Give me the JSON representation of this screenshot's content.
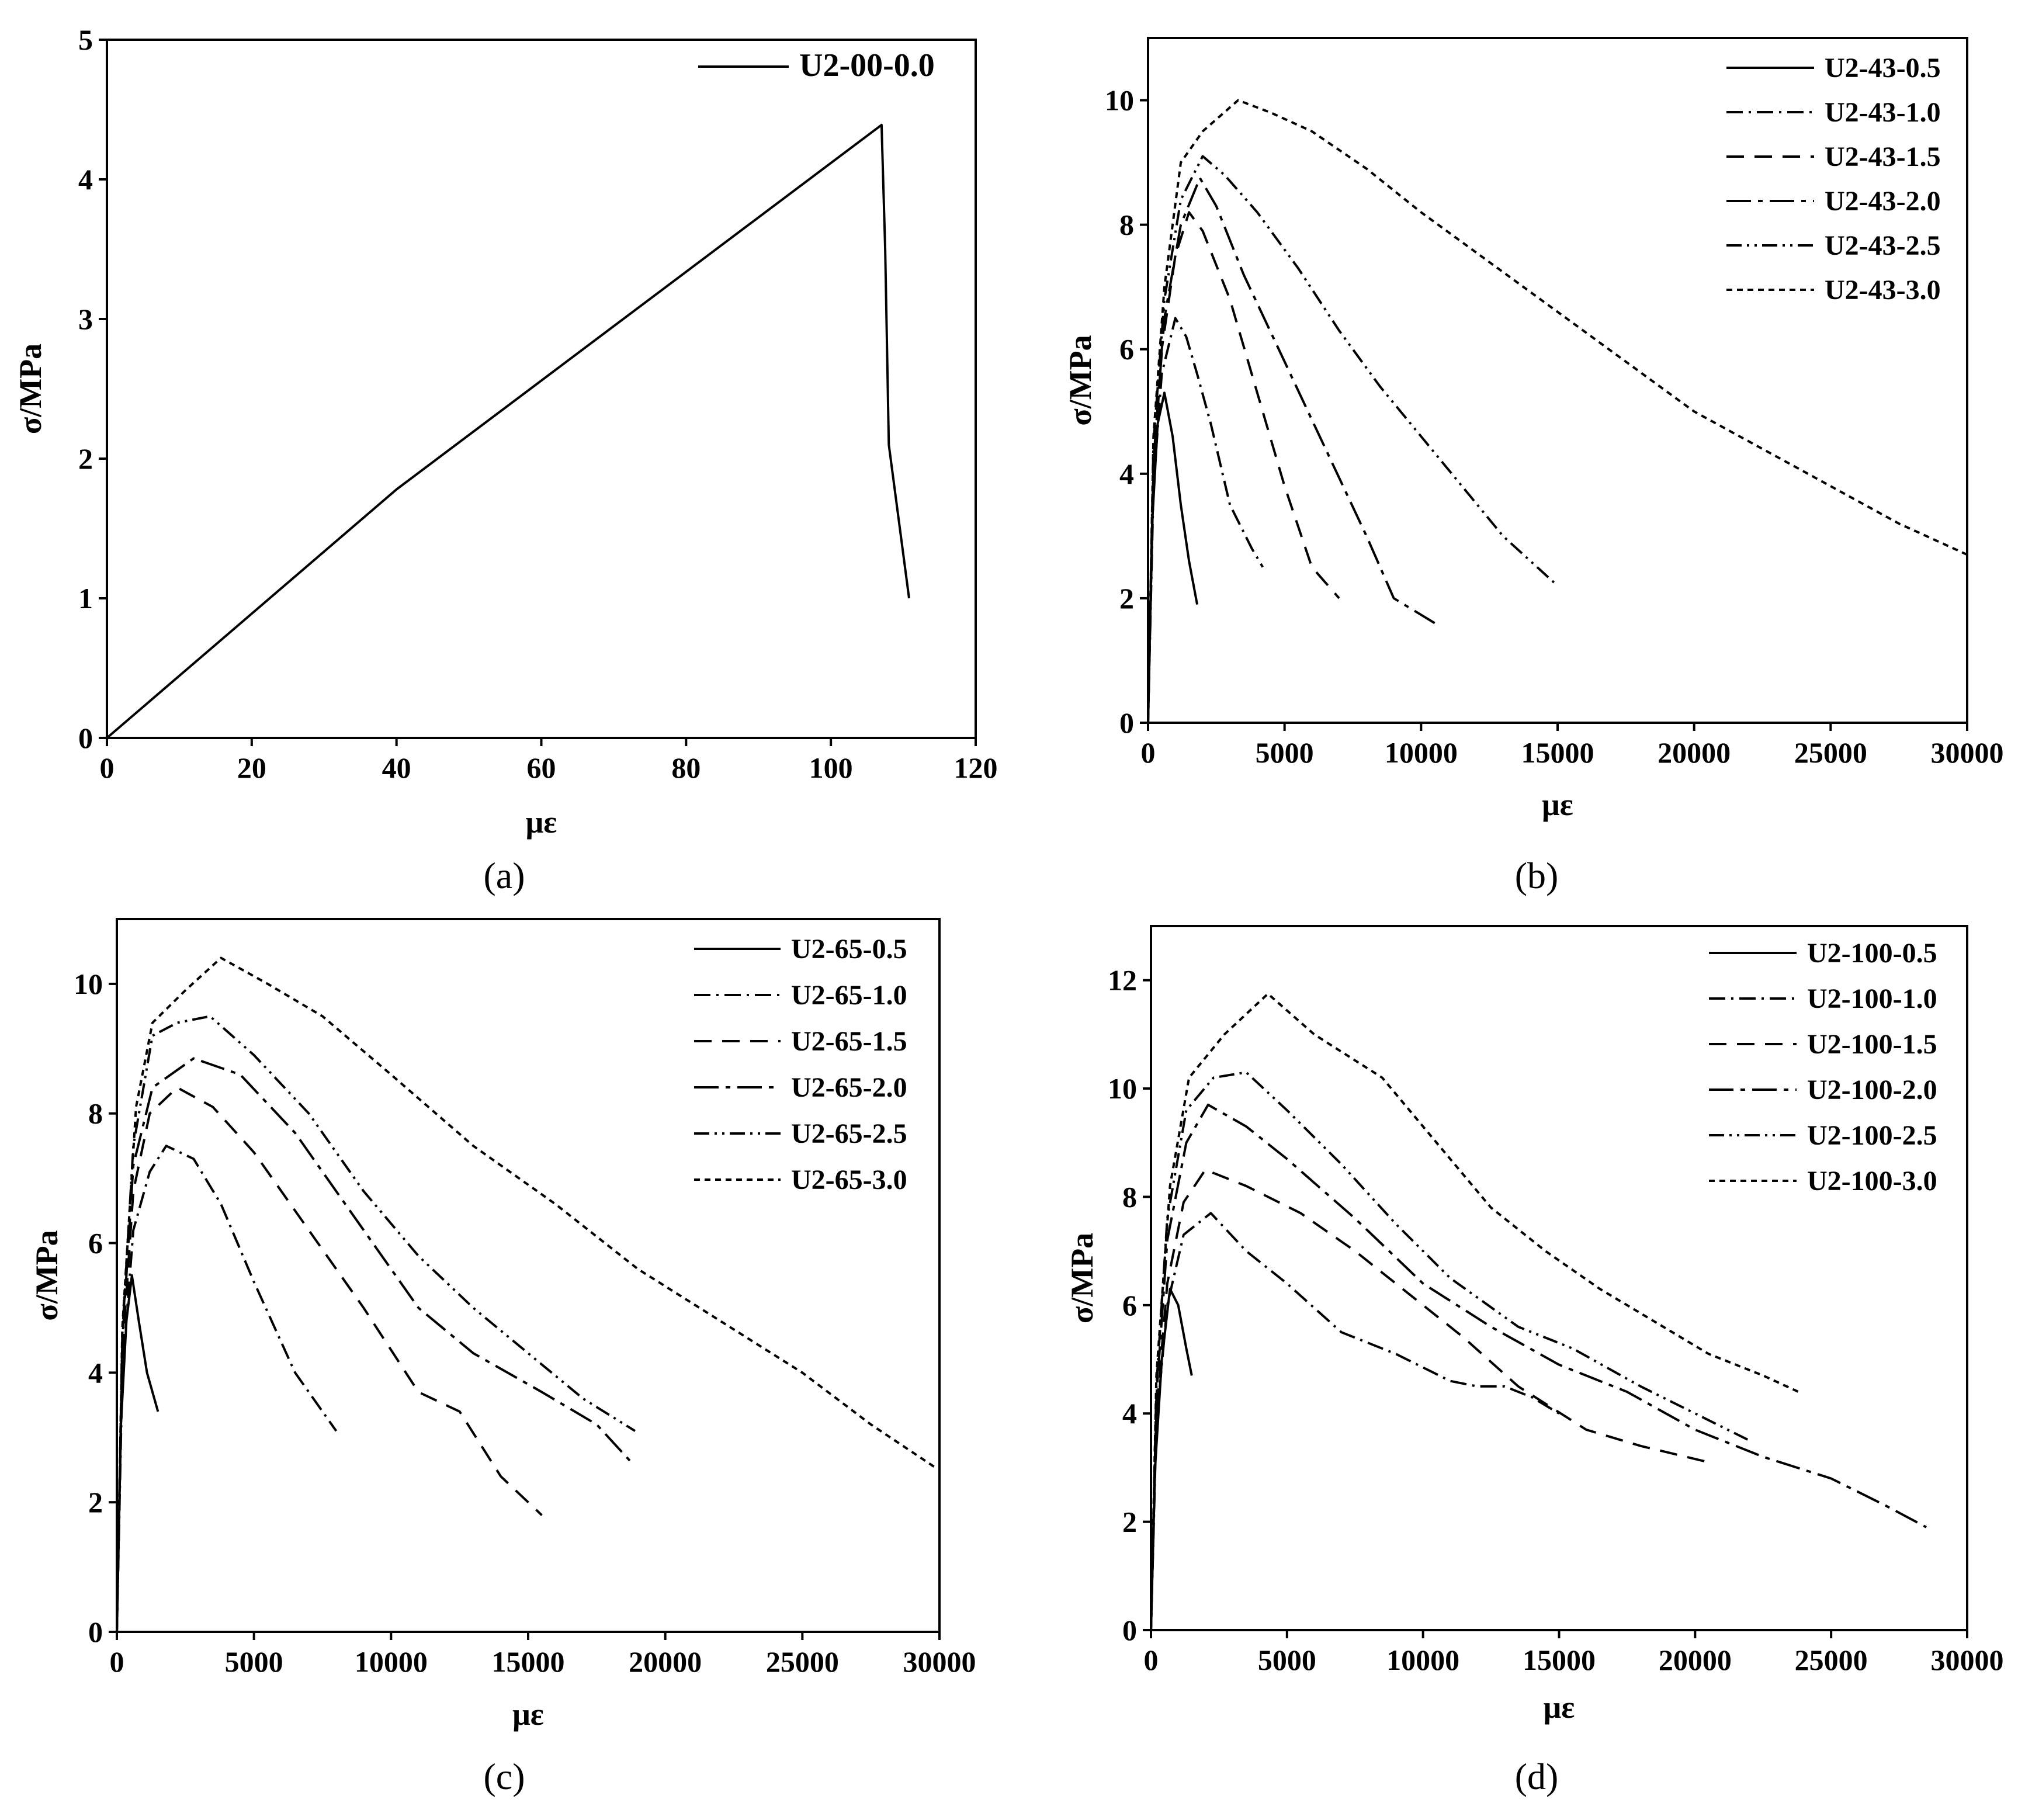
{
  "chart_data": [
    {
      "panel": "a",
      "caption": "(a)",
      "type": "line",
      "xlabel": "με",
      "ylabel": "σ/MPa",
      "xlim": [
        0,
        120
      ],
      "ylim": [
        0,
        5
      ],
      "xticks": [
        0,
        20,
        40,
        60,
        80,
        100,
        120
      ],
      "yticks": [
        0,
        1,
        2,
        3,
        4,
        5
      ],
      "legend_position": "top-right",
      "series": [
        {
          "name": "U2-00-0.0",
          "dash": "solid",
          "points": [
            [
              0,
              0
            ],
            [
              40,
              1.78
            ],
            [
              107,
              4.39
            ],
            [
              107.5,
              3.5
            ],
            [
              108,
              2.1
            ],
            [
              110.8,
              1.0
            ]
          ]
        }
      ]
    },
    {
      "panel": "b",
      "caption": "(b)",
      "type": "line",
      "xlabel": "με",
      "ylabel": "σ/MPa",
      "xlim": [
        0,
        30000
      ],
      "ylim": [
        0,
        11
      ],
      "xticks": [
        0,
        5000,
        10000,
        15000,
        20000,
        25000,
        30000
      ],
      "yticks": [
        0,
        2,
        4,
        6,
        8,
        10
      ],
      "legend_position": "top-right",
      "series": [
        {
          "name": "U2-43-0.5",
          "dash": "solid",
          "points": [
            [
              0,
              0
            ],
            [
              150,
              3.2
            ],
            [
              350,
              4.8
            ],
            [
              600,
              5.3
            ],
            [
              900,
              4.6
            ],
            [
              1200,
              3.5
            ],
            [
              1500,
              2.6
            ],
            [
              1800,
              1.9
            ]
          ]
        },
        {
          "name": "U2-43-1.0",
          "dash": "dashdot",
          "points": [
            [
              0,
              0
            ],
            [
              200,
              3.8
            ],
            [
              500,
              5.6
            ],
            [
              1000,
              6.5
            ],
            [
              1400,
              6.2
            ],
            [
              1800,
              5.6
            ],
            [
              2300,
              4.8
            ],
            [
              3000,
              3.5
            ],
            [
              3800,
              2.8
            ],
            [
              4200,
              2.5
            ]
          ]
        },
        {
          "name": "U2-43-1.5",
          "dash": "dashed",
          "points": [
            [
              0,
              0
            ],
            [
              200,
              4
            ],
            [
              500,
              6
            ],
            [
              1000,
              7.5
            ],
            [
              1500,
              8.2
            ],
            [
              2000,
              7.9
            ],
            [
              3000,
              6.8
            ],
            [
              4000,
              5.3
            ],
            [
              5000,
              3.8
            ],
            [
              6000,
              2.5
            ],
            [
              7000,
              2.0
            ]
          ]
        },
        {
          "name": "U2-43-2.0",
          "dash": "longdash",
          "points": [
            [
              0,
              0
            ],
            [
              200,
              4.2
            ],
            [
              600,
              6.5
            ],
            [
              1200,
              8.0
            ],
            [
              1900,
              8.75
            ],
            [
              2500,
              8.3
            ],
            [
              3500,
              7.2
            ],
            [
              5000,
              5.8
            ],
            [
              6500,
              4.4
            ],
            [
              8000,
              3.0
            ],
            [
              9000,
              2.0
            ],
            [
              10500,
              1.6
            ]
          ]
        },
        {
          "name": "U2-43-2.5",
          "dash": "dashdotdot",
          "points": [
            [
              0,
              0
            ],
            [
              200,
              4.5
            ],
            [
              600,
              6.8
            ],
            [
              1200,
              8.4
            ],
            [
              2000,
              9.1
            ],
            [
              2800,
              8.8
            ],
            [
              4000,
              8.2
            ],
            [
              5500,
              7.3
            ],
            [
              7000,
              6.3
            ],
            [
              8500,
              5.4
            ],
            [
              10000,
              4.6
            ],
            [
              11500,
              3.8
            ],
            [
              13000,
              3.0
            ],
            [
              15000,
              2.2
            ]
          ]
        },
        {
          "name": "U2-43-3.0",
          "dash": "dotted",
          "points": [
            [
              0,
              0
            ],
            [
              200,
              4.6
            ],
            [
              600,
              7.0
            ],
            [
              1200,
              9.0
            ],
            [
              2000,
              9.5
            ],
            [
              3300,
              10.0
            ],
            [
              4500,
              9.8
            ],
            [
              6000,
              9.5
            ],
            [
              8000,
              8.9
            ],
            [
              10000,
              8.2
            ],
            [
              12500,
              7.4
            ],
            [
              15000,
              6.6
            ],
            [
              17500,
              5.8
            ],
            [
              20000,
              5.0
            ],
            [
              22500,
              4.4
            ],
            [
              25000,
              3.8
            ],
            [
              27500,
              3.2
            ],
            [
              30000,
              2.7
            ]
          ]
        }
      ]
    },
    {
      "panel": "c",
      "caption": "(c)",
      "type": "line",
      "xlabel": "με",
      "ylabel": "σ/MPa",
      "xlim": [
        0,
        30000
      ],
      "ylim": [
        0,
        11
      ],
      "xticks": [
        0,
        5000,
        10000,
        15000,
        20000,
        25000,
        30000
      ],
      "yticks": [
        0,
        2,
        4,
        6,
        8,
        10
      ],
      "legend_position": "top-right",
      "series": [
        {
          "name": "U2-65-0.5",
          "dash": "solid",
          "points": [
            [
              0,
              0
            ],
            [
              150,
              3.2
            ],
            [
              350,
              4.8
            ],
            [
              550,
              5.5
            ],
            [
              800,
              4.8
            ],
            [
              1100,
              4.0
            ],
            [
              1500,
              3.4
            ]
          ]
        },
        {
          "name": "U2-65-1.0",
          "dash": "dashdot",
          "points": [
            [
              0,
              0
            ],
            [
              200,
              4
            ],
            [
              600,
              6.2
            ],
            [
              1200,
              7.1
            ],
            [
              1800,
              7.5
            ],
            [
              2800,
              7.3
            ],
            [
              3800,
              6.6
            ],
            [
              5000,
              5.4
            ],
            [
              6500,
              4.0
            ],
            [
              8000,
              3.1
            ]
          ]
        },
        {
          "name": "U2-65-1.5",
          "dash": "dashed",
          "points": [
            [
              0,
              0
            ],
            [
              200,
              4.3
            ],
            [
              600,
              6.8
            ],
            [
              1200,
              8.0
            ],
            [
              2200,
              8.4
            ],
            [
              3500,
              8.1
            ],
            [
              5000,
              7.4
            ],
            [
              7000,
              6.2
            ],
            [
              9000,
              5.0
            ],
            [
              11000,
              3.7
            ],
            [
              12500,
              3.4
            ],
            [
              14000,
              2.4
            ],
            [
              15500,
              1.8
            ]
          ]
        },
        {
          "name": "U2-65-2.0",
          "dash": "longdash",
          "points": [
            [
              0,
              0
            ],
            [
              200,
              4.5
            ],
            [
              600,
              7.2
            ],
            [
              1300,
              8.4
            ],
            [
              2800,
              8.85
            ],
            [
              4500,
              8.6
            ],
            [
              6500,
              7.7
            ],
            [
              8500,
              6.5
            ],
            [
              11000,
              5.0
            ],
            [
              13000,
              4.3
            ],
            [
              15500,
              3.7
            ],
            [
              17500,
              3.2
            ],
            [
              18800,
              2.6
            ]
          ]
        },
        {
          "name": "U2-65-2.5",
          "dash": "dashdotdot",
          "points": [
            [
              0,
              0
            ],
            [
              200,
              4.6
            ],
            [
              600,
              7.5
            ],
            [
              1300,
              9.2
            ],
            [
              2200,
              9.4
            ],
            [
              3400,
              9.5
            ],
            [
              5000,
              8.9
            ],
            [
              7000,
              8.0
            ],
            [
              9000,
              6.8
            ],
            [
              11000,
              5.8
            ],
            [
              13000,
              5.0
            ],
            [
              15000,
              4.3
            ],
            [
              17000,
              3.6
            ],
            [
              18900,
              3.1
            ]
          ]
        },
        {
          "name": "U2-65-3.0",
          "dash": "dotted",
          "points": [
            [
              0,
              0
            ],
            [
              200,
              4.7
            ],
            [
              700,
              8.1
            ],
            [
              1300,
              9.4
            ],
            [
              2500,
              9.9
            ],
            [
              3800,
              10.4
            ],
            [
              5500,
              10.0
            ],
            [
              7500,
              9.5
            ],
            [
              10000,
              8.6
            ],
            [
              13000,
              7.5
            ],
            [
              16000,
              6.6
            ],
            [
              19000,
              5.6
            ],
            [
              22000,
              4.8
            ],
            [
              25000,
              4.0
            ],
            [
              27500,
              3.2
            ],
            [
              29800,
              2.55
            ]
          ]
        }
      ]
    },
    {
      "panel": "d",
      "caption": "(d)",
      "type": "line",
      "xlabel": "με",
      "ylabel": "σ/MPa",
      "xlim": [
        0,
        30000
      ],
      "ylim": [
        0,
        13
      ],
      "xticks": [
        0,
        5000,
        10000,
        15000,
        20000,
        25000,
        30000
      ],
      "yticks": [
        0,
        2,
        4,
        6,
        8,
        10,
        12
      ],
      "legend_position": "top-right",
      "series": [
        {
          "name": "U2-100-0.5",
          "dash": "solid",
          "points": [
            [
              0,
              0
            ],
            [
              150,
              3.0
            ],
            [
              400,
              5.0
            ],
            [
              700,
              6.3
            ],
            [
              1000,
              6.0
            ],
            [
              1300,
              5.2
            ],
            [
              1500,
              4.7
            ]
          ]
        },
        {
          "name": "U2-100-1.0",
          "dash": "dashdot",
          "points": [
            [
              0,
              0
            ],
            [
              200,
              3.8
            ],
            [
              600,
              6.0
            ],
            [
              1200,
              7.3
            ],
            [
              2200,
              7.7
            ],
            [
              3500,
              7.0
            ],
            [
              5000,
              6.4
            ],
            [
              7000,
              5.5
            ],
            [
              9000,
              5.1
            ],
            [
              11000,
              4.6
            ],
            [
              12000,
              4.5
            ],
            [
              13000,
              4.5
            ],
            [
              14000,
              4.3
            ],
            [
              15000,
              4.0
            ]
          ]
        },
        {
          "name": "U2-100-1.5",
          "dash": "dashed",
          "points": [
            [
              0,
              0
            ],
            [
              200,
              4.0
            ],
            [
              600,
              6.4
            ],
            [
              1200,
              7.9
            ],
            [
              2000,
              8.5
            ],
            [
              3500,
              8.2
            ],
            [
              5500,
              7.7
            ],
            [
              7500,
              7.0
            ],
            [
              9500,
              6.2
            ],
            [
              11500,
              5.4
            ],
            [
              13500,
              4.5
            ],
            [
              16000,
              3.7
            ],
            [
              18000,
              3.4
            ],
            [
              20500,
              3.1
            ]
          ]
        },
        {
          "name": "U2-100-2.0",
          "dash": "longdash",
          "points": [
            [
              0,
              0
            ],
            [
              200,
              4.3
            ],
            [
              600,
              7.2
            ],
            [
              1300,
              9.0
            ],
            [
              2100,
              9.7
            ],
            [
              3500,
              9.3
            ],
            [
              5000,
              8.7
            ],
            [
              7500,
              7.6
            ],
            [
              10000,
              6.4
            ],
            [
              12500,
              5.6
            ],
            [
              15000,
              4.9
            ],
            [
              17500,
              4.4
            ],
            [
              20000,
              3.7
            ],
            [
              22500,
              3.2
            ],
            [
              25000,
              2.8
            ],
            [
              27000,
              2.3
            ],
            [
              28500,
              1.9
            ]
          ]
        },
        {
          "name": "U2-100-2.5",
          "dash": "dashdotdot",
          "points": [
            [
              0,
              0
            ],
            [
              200,
              4.5
            ],
            [
              600,
              7.6
            ],
            [
              1300,
              9.6
            ],
            [
              2300,
              10.2
            ],
            [
              3500,
              10.3
            ],
            [
              5000,
              9.6
            ],
            [
              7000,
              8.6
            ],
            [
              9000,
              7.5
            ],
            [
              11000,
              6.5
            ],
            [
              13500,
              5.6
            ],
            [
              15500,
              5.2
            ],
            [
              18000,
              4.5
            ],
            [
              20000,
              4.0
            ],
            [
              22000,
              3.5
            ]
          ]
        },
        {
          "name": "U2-100-3.0",
          "dash": "dotted",
          "points": [
            [
              0,
              0
            ],
            [
              200,
              4.7
            ],
            [
              700,
              8.2
            ],
            [
              1400,
              10.2
            ],
            [
              2700,
              11.0
            ],
            [
              4300,
              11.75
            ],
            [
              6000,
              11.0
            ],
            [
              8500,
              10.2
            ],
            [
              10500,
              9.0
            ],
            [
              12500,
              7.8
            ],
            [
              14500,
              7.0
            ],
            [
              16500,
              6.3
            ],
            [
              18500,
              5.7
            ],
            [
              20500,
              5.1
            ],
            [
              22500,
              4.7
            ],
            [
              23800,
              4.4
            ]
          ]
        }
      ]
    }
  ]
}
